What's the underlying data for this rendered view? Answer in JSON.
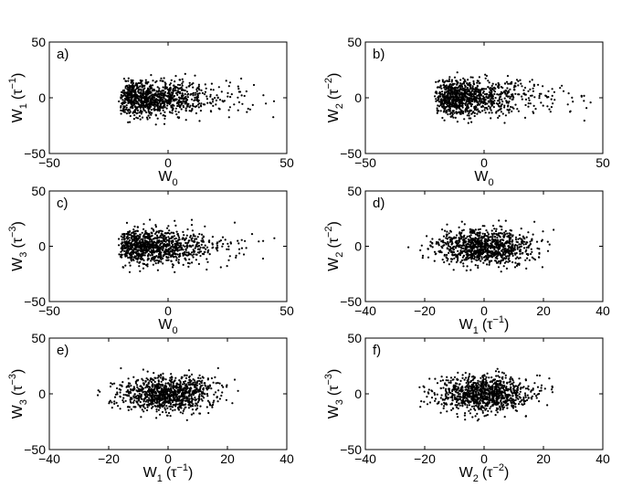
{
  "chart_data": [
    {
      "type": "scatter",
      "panel": "a)",
      "xlim": [
        -50,
        50
      ],
      "ylim": [
        -50,
        50
      ],
      "xticks": [
        -50,
        0,
        50
      ],
      "yticks": [
        -50,
        0,
        50
      ],
      "xlabel": {
        "base": "W",
        "sub": "0",
        "unit": "",
        "sup": ""
      },
      "ylabel": {
        "base": "W",
        "sub": "1",
        "unit": "(τ",
        "sup": "−1",
        "close": ")"
      },
      "dist": {
        "x": {
          "lo": -21,
          "hi": 45,
          "mode": -2
        },
        "y": {
          "sd": 8,
          "max": 24
        }
      },
      "n_points": 1000
    },
    {
      "type": "scatter",
      "panel": "b)",
      "xlim": [
        -50,
        50
      ],
      "ylim": [
        -50,
        50
      ],
      "xticks": [
        -50,
        0,
        50
      ],
      "yticks": [
        -50,
        0,
        50
      ],
      "xlabel": {
        "base": "W",
        "sub": "0",
        "unit": "",
        "sup": ""
      },
      "ylabel": {
        "base": "W",
        "sub": "2",
        "unit": "(τ",
        "sup": "−2",
        "close": ")"
      },
      "dist": {
        "x": {
          "lo": -21,
          "hi": 45,
          "mode": -2
        },
        "y": {
          "sd": 8,
          "max": 24
        }
      },
      "n_points": 1000
    },
    {
      "type": "scatter",
      "panel": "c)",
      "xlim": [
        -50,
        50
      ],
      "ylim": [
        -50,
        50
      ],
      "xticks": [
        -50,
        0,
        50
      ],
      "yticks": [
        -50,
        0,
        50
      ],
      "xlabel": {
        "base": "W",
        "sub": "0",
        "unit": "",
        "sup": ""
      },
      "ylabel": {
        "base": "W",
        "sub": "3",
        "unit": "(τ",
        "sup": "−3",
        "close": ")"
      },
      "dist": {
        "x": {
          "lo": -21,
          "hi": 45,
          "mode": -2
        },
        "y": {
          "sd": 8,
          "max": 24
        }
      },
      "n_points": 1000
    },
    {
      "type": "scatter",
      "panel": "d)",
      "xlim": [
        -40,
        40
      ],
      "ylim": [
        -50,
        50
      ],
      "xticks": [
        -40,
        -20,
        0,
        20,
        40
      ],
      "yticks": [
        -50,
        0,
        50
      ],
      "xlabel": {
        "base": "W",
        "sub": "1",
        "unit": "(τ",
        "sup": "−1",
        "close": ")"
      },
      "ylabel": {
        "base": "W",
        "sub": "2",
        "unit": "(τ",
        "sup": "−2",
        "close": ")"
      },
      "dist": {
        "x": {
          "sd": 8,
          "max": 26
        },
        "y": {
          "sd": 8,
          "max": 24
        }
      },
      "n_points": 1000
    },
    {
      "type": "scatter",
      "panel": "e)",
      "xlim": [
        -40,
        40
      ],
      "ylim": [
        -50,
        50
      ],
      "xticks": [
        -40,
        -20,
        0,
        20,
        40
      ],
      "yticks": [
        -50,
        0,
        50
      ],
      "xlabel": {
        "base": "W",
        "sub": "1",
        "unit": "(τ",
        "sup": "−1",
        "close": ")"
      },
      "ylabel": {
        "base": "W",
        "sub": "3",
        "unit": "(τ",
        "sup": "−3",
        "close": ")"
      },
      "dist": {
        "x": {
          "sd": 8,
          "max": 26
        },
        "y": {
          "sd": 8,
          "max": 24
        }
      },
      "n_points": 1000
    },
    {
      "type": "scatter",
      "panel": "f)",
      "xlim": [
        -40,
        40
      ],
      "ylim": [
        -50,
        50
      ],
      "xticks": [
        -40,
        -20,
        0,
        20,
        40
      ],
      "yticks": [
        -50,
        0,
        50
      ],
      "xlabel": {
        "base": "W",
        "sub": "2",
        "unit": "(τ",
        "sup": "−2",
        "close": ")"
      },
      "ylabel": {
        "base": "W",
        "sub": "3",
        "unit": "(τ",
        "sup": "−3",
        "close": ")"
      },
      "dist": {
        "x": {
          "sd": 8,
          "max": 26
        },
        "y": {
          "sd": 8,
          "max": 24
        }
      },
      "n_points": 1000
    }
  ]
}
